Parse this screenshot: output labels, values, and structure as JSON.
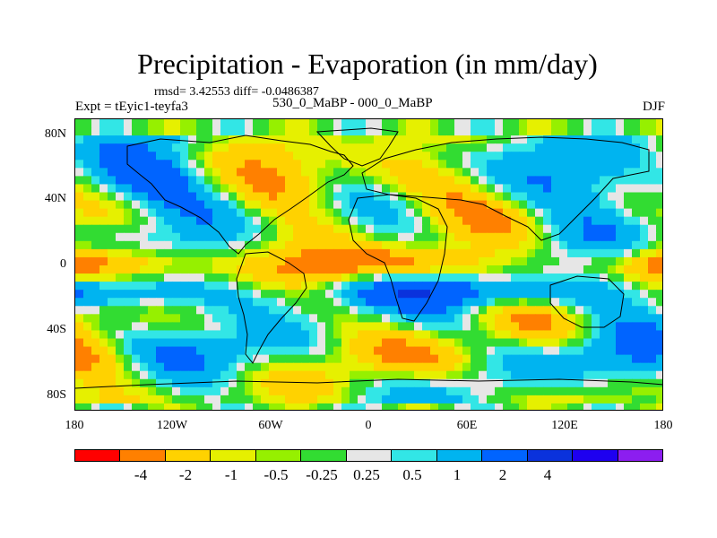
{
  "title": "Precipitation - Evaporation (in mm/day)",
  "stats": "rmsd= 3.42553  diff= -0.0486387",
  "experiment": "Expt = tEyic1-teyfa3",
  "subtitle": "530_0_MaBP - 000_0_MaBP",
  "season": "DJF",
  "axes": {
    "y_ticks": [
      "80N",
      "40N",
      "0",
      "40S",
      "80S"
    ],
    "x_ticks": [
      "180",
      "120W",
      "60W",
      "0",
      "60E",
      "120E",
      "180"
    ]
  },
  "colorbar": {
    "colors": [
      "#ff0000",
      "#ff8000",
      "#ffd200",
      "#e6f000",
      "#96f000",
      "#32dc32",
      "#e6e6e6",
      "#32e6e6",
      "#00b4f0",
      "#0064ff",
      "#0a32dc",
      "#1e00f0",
      "#8c1ef0"
    ],
    "labels": [
      "-4",
      "-2",
      "-1",
      "-0.5",
      "-0.25",
      "0.25",
      "0.5",
      "1",
      "2",
      "4"
    ]
  }
}
